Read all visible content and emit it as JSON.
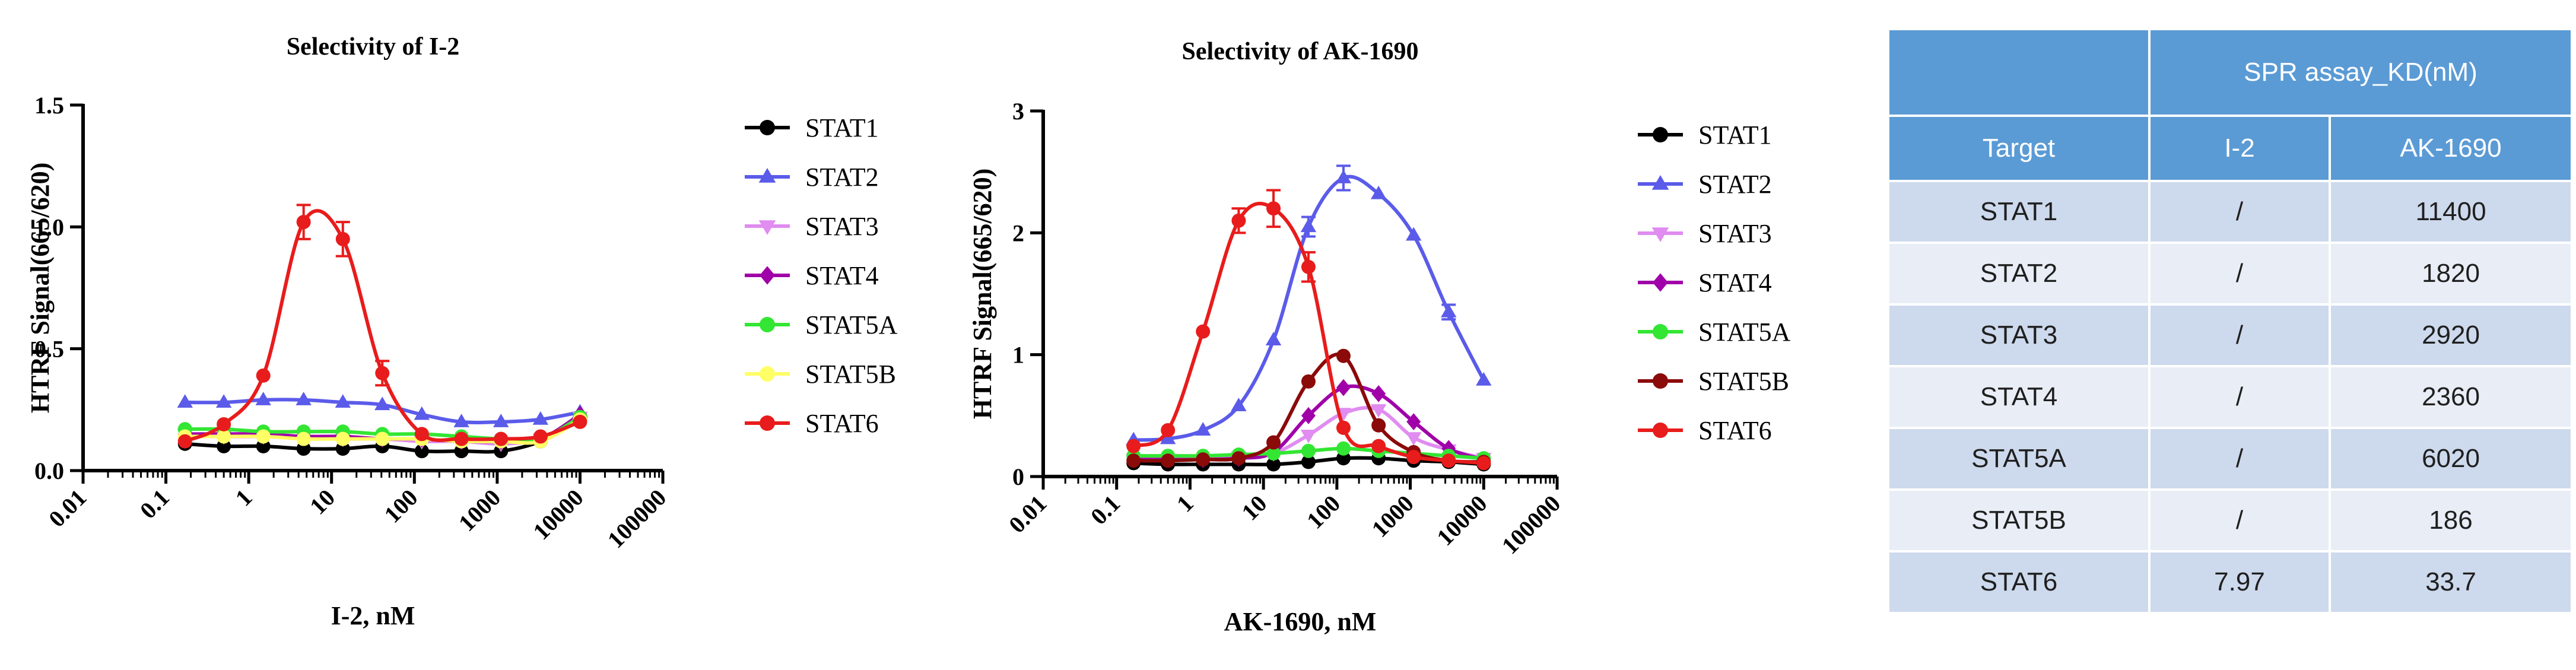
{
  "chart_data": [
    {
      "type": "line",
      "title": "Selectivity of I-2",
      "xlabel": "I-2, nM",
      "ylabel": "HTRF Signal(665/620)",
      "xscale": "log",
      "xlim": [
        0.01,
        100000
      ],
      "ylim": [
        0,
        1.5
      ],
      "x_ticks": [
        "0.01",
        "0.1",
        "1",
        "10",
        "100",
        "1000",
        "10000",
        "100000"
      ],
      "y_ticks": [
        "0.0",
        "0.5",
        "1.0",
        "1.5"
      ],
      "x": [
        0.17,
        0.5,
        1.5,
        4.6,
        13.7,
        41,
        123,
        370,
        1111,
        3333,
        10000
      ],
      "series": [
        {
          "name": "STAT1",
          "color": "#000000",
          "marker": "circle",
          "values": [
            0.11,
            0.1,
            0.1,
            0.09,
            0.09,
            0.1,
            0.08,
            0.08,
            0.08,
            0.12,
            0.21
          ]
        },
        {
          "name": "STAT2",
          "color": "#5b5bea",
          "marker": "triangle-up",
          "values": [
            0.28,
            0.28,
            0.29,
            0.29,
            0.28,
            0.27,
            0.23,
            0.2,
            0.2,
            0.21,
            0.24
          ]
        },
        {
          "name": "STAT3",
          "color": "#e08cf0",
          "marker": "triangle-down",
          "values": [
            0.15,
            0.14,
            0.14,
            0.14,
            0.13,
            0.13,
            0.12,
            0.12,
            0.11,
            0.13,
            0.22
          ]
        },
        {
          "name": "STAT4",
          "color": "#a000a8",
          "marker": "diamond",
          "values": [
            0.15,
            0.15,
            0.15,
            0.14,
            0.14,
            0.13,
            0.13,
            0.12,
            0.12,
            0.13,
            0.23
          ]
        },
        {
          "name": "STAT5A",
          "color": "#33e633",
          "marker": "circle",
          "values": [
            0.17,
            0.17,
            0.16,
            0.16,
            0.16,
            0.15,
            0.15,
            0.14,
            0.13,
            0.13,
            0.22
          ]
        },
        {
          "name": "STAT5B",
          "color": "#ffff66",
          "marker": "circle",
          "values": [
            0.14,
            0.14,
            0.14,
            0.13,
            0.13,
            0.13,
            0.13,
            0.12,
            0.12,
            0.12,
            0.21
          ]
        },
        {
          "name": "STAT6",
          "color": "#e81c1c",
          "marker": "circle",
          "values": [
            0.12,
            0.19,
            0.39,
            1.02,
            0.95,
            0.4,
            0.15,
            0.13,
            0.13,
            0.14,
            0.2
          ],
          "errors": [
            0,
            0,
            0,
            0.07,
            0.07,
            0.05,
            0,
            0,
            0,
            0,
            0
          ]
        }
      ]
    },
    {
      "type": "line",
      "title": "Selectivity of AK-1690",
      "xlabel": "AK-1690, nM",
      "ylabel": "HTRF Signal(665/620)",
      "xscale": "log",
      "xlim": [
        0.01,
        100000
      ],
      "ylim": [
        0,
        3
      ],
      "x_ticks": [
        "0.01",
        "0.1",
        "1",
        "10",
        "100",
        "1000",
        "10000",
        "100000"
      ],
      "y_ticks": [
        "0",
        "1",
        "2",
        "3"
      ],
      "x": [
        0.17,
        0.5,
        1.5,
        4.6,
        13.7,
        41,
        123,
        370,
        1111,
        3333,
        10000
      ],
      "series": [
        {
          "name": "STAT1",
          "color": "#000000",
          "marker": "circle",
          "values": [
            0.11,
            0.1,
            0.1,
            0.1,
            0.1,
            0.12,
            0.15,
            0.15,
            0.13,
            0.12,
            0.1
          ]
        },
        {
          "name": "STAT2",
          "color": "#5b5bea",
          "marker": "triangle-up",
          "values": [
            0.3,
            0.31,
            0.38,
            0.58,
            1.12,
            2.05,
            2.45,
            2.32,
            1.98,
            1.35,
            0.79
          ],
          "errors": [
            0,
            0,
            0,
            0,
            0,
            0.08,
            0.1,
            0,
            0,
            0.06,
            0
          ]
        },
        {
          "name": "STAT3",
          "color": "#e08cf0",
          "marker": "triangle-down",
          "values": [
            0.14,
            0.14,
            0.14,
            0.16,
            0.19,
            0.34,
            0.52,
            0.55,
            0.32,
            0.22,
            0.15
          ]
        },
        {
          "name": "STAT4",
          "color": "#a000a8",
          "marker": "diamond",
          "values": [
            0.14,
            0.14,
            0.14,
            0.15,
            0.2,
            0.5,
            0.73,
            0.68,
            0.45,
            0.23,
            0.14
          ]
        },
        {
          "name": "STAT5A",
          "color": "#33e633",
          "marker": "circle",
          "values": [
            0.17,
            0.17,
            0.17,
            0.18,
            0.19,
            0.21,
            0.23,
            0.21,
            0.19,
            0.17,
            0.15
          ]
        },
        {
          "name": "STAT5B",
          "color": "#8b0a0a",
          "marker": "circle",
          "values": [
            0.13,
            0.13,
            0.14,
            0.15,
            0.28,
            0.78,
            0.99,
            0.42,
            0.2,
            0.13,
            0.12
          ]
        },
        {
          "name": "STAT6",
          "color": "#e81c1c",
          "marker": "circle",
          "values": [
            0.25,
            0.38,
            1.19,
            2.1,
            2.2,
            1.72,
            0.4,
            0.25,
            0.16,
            0.13,
            0.11
          ],
          "errors": [
            0,
            0,
            0,
            0.1,
            0.15,
            0.12,
            0,
            0,
            0,
            0,
            0
          ]
        }
      ]
    }
  ],
  "table": {
    "title": "SPR assay_KD(nM)",
    "headers": [
      "Target",
      "I-2",
      "AK-1690"
    ],
    "rows": [
      [
        "STAT1",
        "/",
        "11400"
      ],
      [
        "STAT2",
        "/",
        "1820"
      ],
      [
        "STAT3",
        "/",
        "2920"
      ],
      [
        "STAT4",
        "/",
        "2360"
      ],
      [
        "STAT5A",
        "/",
        "6020"
      ],
      [
        "STAT5B",
        "/",
        "186"
      ],
      [
        "STAT6",
        "7.97",
        "33.7"
      ]
    ]
  }
}
